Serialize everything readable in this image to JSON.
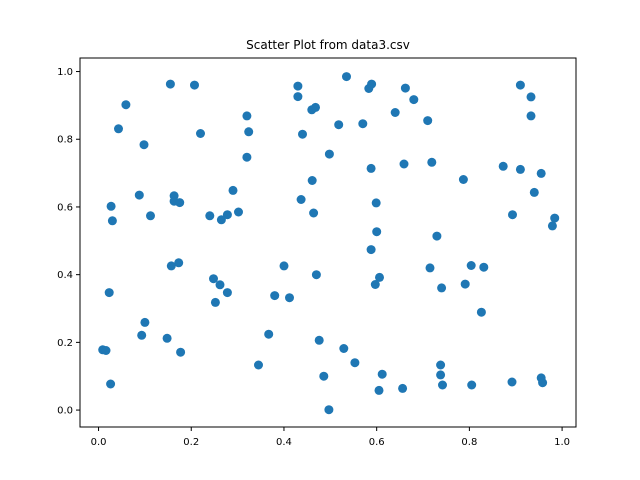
{
  "chart_data": {
    "type": "scatter",
    "title": "Scatter Plot from data3.csv",
    "xlabel": "",
    "ylabel": "",
    "xlim": [
      -0.04,
      1.03
    ],
    "ylim": [
      -0.05,
      1.04
    ],
    "xticks": [
      0.0,
      0.2,
      0.4,
      0.6,
      0.8,
      1.0
    ],
    "yticks": [
      0.0,
      0.2,
      0.4,
      0.6,
      0.8,
      1.0
    ],
    "xtick_labels": [
      "0.0",
      "0.2",
      "0.4",
      "0.6",
      "0.8",
      "1.0"
    ],
    "ytick_labels": [
      "0.0",
      "0.2",
      "0.4",
      "0.6",
      "0.8",
      "1.0"
    ],
    "grid": false,
    "marker_color": "#1f77b4",
    "points": [
      {
        "x": 0.155,
        "y": 0.963
      },
      {
        "x": 0.207,
        "y": 0.96
      },
      {
        "x": 0.059,
        "y": 0.902
      },
      {
        "x": 0.043,
        "y": 0.831
      },
      {
        "x": 0.098,
        "y": 0.784
      },
      {
        "x": 0.22,
        "y": 0.817
      },
      {
        "x": 0.32,
        "y": 0.869
      },
      {
        "x": 0.324,
        "y": 0.822
      },
      {
        "x": 0.32,
        "y": 0.747
      },
      {
        "x": 0.43,
        "y": 0.957
      },
      {
        "x": 0.43,
        "y": 0.926
      },
      {
        "x": 0.46,
        "y": 0.887
      },
      {
        "x": 0.468,
        "y": 0.894
      },
      {
        "x": 0.44,
        "y": 0.815
      },
      {
        "x": 0.535,
        "y": 0.985
      },
      {
        "x": 0.583,
        "y": 0.95
      },
      {
        "x": 0.589,
        "y": 0.963
      },
      {
        "x": 0.662,
        "y": 0.951
      },
      {
        "x": 0.68,
        "y": 0.917
      },
      {
        "x": 0.64,
        "y": 0.879
      },
      {
        "x": 0.71,
        "y": 0.855
      },
      {
        "x": 0.518,
        "y": 0.843
      },
      {
        "x": 0.57,
        "y": 0.846
      },
      {
        "x": 0.498,
        "y": 0.756
      },
      {
        "x": 0.588,
        "y": 0.714
      },
      {
        "x": 0.659,
        "y": 0.727
      },
      {
        "x": 0.719,
        "y": 0.732
      },
      {
        "x": 0.91,
        "y": 0.96
      },
      {
        "x": 0.933,
        "y": 0.925
      },
      {
        "x": 0.933,
        "y": 0.869
      },
      {
        "x": 0.873,
        "y": 0.72
      },
      {
        "x": 0.91,
        "y": 0.711
      },
      {
        "x": 0.955,
        "y": 0.699
      },
      {
        "x": 0.94,
        "y": 0.643
      },
      {
        "x": 0.787,
        "y": 0.681
      },
      {
        "x": 0.893,
        "y": 0.577
      },
      {
        "x": 0.984,
        "y": 0.567
      },
      {
        "x": 0.979,
        "y": 0.544
      },
      {
        "x": 0.088,
        "y": 0.635
      },
      {
        "x": 0.027,
        "y": 0.602
      },
      {
        "x": 0.03,
        "y": 0.559
      },
      {
        "x": 0.112,
        "y": 0.574
      },
      {
        "x": 0.163,
        "y": 0.633
      },
      {
        "x": 0.163,
        "y": 0.617
      },
      {
        "x": 0.175,
        "y": 0.613
      },
      {
        "x": 0.29,
        "y": 0.649
      },
      {
        "x": 0.24,
        "y": 0.574
      },
      {
        "x": 0.278,
        "y": 0.577
      },
      {
        "x": 0.302,
        "y": 0.585
      },
      {
        "x": 0.265,
        "y": 0.562
      },
      {
        "x": 0.437,
        "y": 0.622
      },
      {
        "x": 0.461,
        "y": 0.678
      },
      {
        "x": 0.464,
        "y": 0.582
      },
      {
        "x": 0.599,
        "y": 0.612
      },
      {
        "x": 0.6,
        "y": 0.527
      },
      {
        "x": 0.588,
        "y": 0.474
      },
      {
        "x": 0.73,
        "y": 0.514
      },
      {
        "x": 0.023,
        "y": 0.347
      },
      {
        "x": 0.157,
        "y": 0.426
      },
      {
        "x": 0.173,
        "y": 0.435
      },
      {
        "x": 0.248,
        "y": 0.388
      },
      {
        "x": 0.262,
        "y": 0.37
      },
      {
        "x": 0.278,
        "y": 0.347
      },
      {
        "x": 0.252,
        "y": 0.318
      },
      {
        "x": 0.38,
        "y": 0.338
      },
      {
        "x": 0.4,
        "y": 0.426
      },
      {
        "x": 0.412,
        "y": 0.332
      },
      {
        "x": 0.47,
        "y": 0.4
      },
      {
        "x": 0.606,
        "y": 0.392
      },
      {
        "x": 0.597,
        "y": 0.371
      },
      {
        "x": 0.715,
        "y": 0.42
      },
      {
        "x": 0.74,
        "y": 0.361
      },
      {
        "x": 0.804,
        "y": 0.427
      },
      {
        "x": 0.831,
        "y": 0.422
      },
      {
        "x": 0.791,
        "y": 0.372
      },
      {
        "x": 0.826,
        "y": 0.289
      },
      {
        "x": 0.009,
        "y": 0.178
      },
      {
        "x": 0.016,
        "y": 0.176
      },
      {
        "x": 0.026,
        "y": 0.077
      },
      {
        "x": 0.1,
        "y": 0.259
      },
      {
        "x": 0.093,
        "y": 0.221
      },
      {
        "x": 0.148,
        "y": 0.212
      },
      {
        "x": 0.177,
        "y": 0.171
      },
      {
        "x": 0.345,
        "y": 0.133
      },
      {
        "x": 0.367,
        "y": 0.224
      },
      {
        "x": 0.476,
        "y": 0.206
      },
      {
        "x": 0.529,
        "y": 0.182
      },
      {
        "x": 0.553,
        "y": 0.14
      },
      {
        "x": 0.486,
        "y": 0.1
      },
      {
        "x": 0.497,
        "y": 0.001
      },
      {
        "x": 0.612,
        "y": 0.106
      },
      {
        "x": 0.605,
        "y": 0.058
      },
      {
        "x": 0.656,
        "y": 0.064
      },
      {
        "x": 0.738,
        "y": 0.133
      },
      {
        "x": 0.738,
        "y": 0.104
      },
      {
        "x": 0.742,
        "y": 0.074
      },
      {
        "x": 0.805,
        "y": 0.074
      },
      {
        "x": 0.892,
        "y": 0.083
      },
      {
        "x": 0.955,
        "y": 0.095
      },
      {
        "x": 0.958,
        "y": 0.081
      }
    ]
  }
}
